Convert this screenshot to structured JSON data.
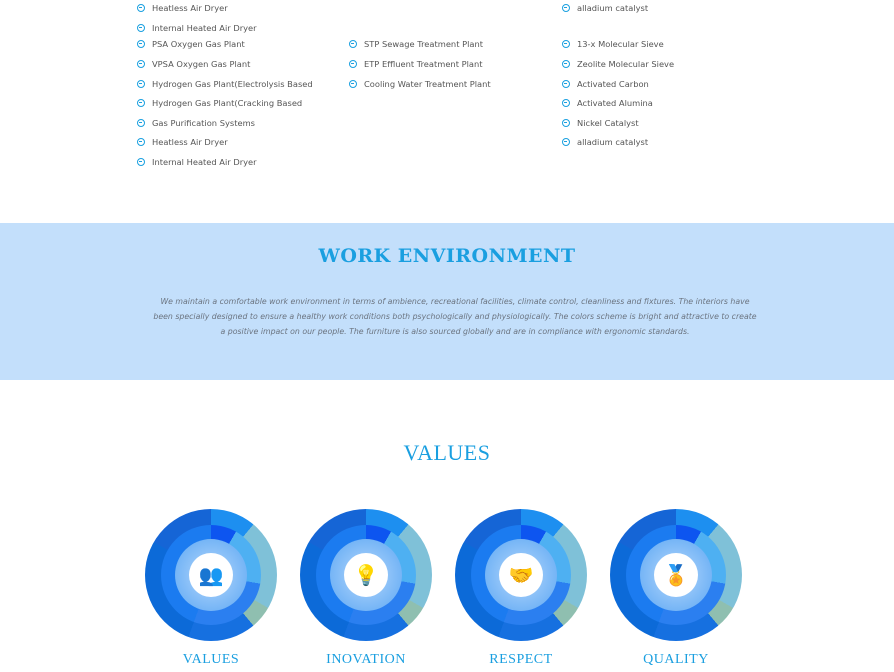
{
  "lists": {
    "col1_top": [
      "Heatless Air Dryer",
      "Internal Heated Air Dryer"
    ],
    "col1": [
      "PSA Oxygen Gas Plant",
      "VPSA Oxygen Gas Plant",
      "Hydrogen Gas Plant(Electrolysis Based",
      "Hydrogen Gas Plant(Cracking Based",
      "Gas Purification Systems",
      "Heatless Air Dryer",
      "Internal Heated Air Dryer"
    ],
    "col2": [
      "STP Sewage Treatment Plant",
      "ETP Effluent Treatment Plant",
      "Cooling Water Treatment Plant"
    ],
    "col3_top": [
      "alladium catalyst"
    ],
    "col3": [
      "13-x Molecular Sieve",
      "Zeolite Molecular Sieve",
      "Activated Carbon",
      "Activated Alumina",
      "Nickel Catalyst",
      "alladium catalyst"
    ],
    "icon": "circle-arrow-right-icon"
  },
  "work_environment": {
    "title": "WORK ENVIRONMENT",
    "text": "We maintain a comfortable work environment in terms of ambience, recreational facilities, climate control, cleanliness and fixtures. The interiors have been specially designed to ensure a healthy work conditions both psychologically and physiologically. The colors scheme is bright and attractive to create a positive impact on our people. The furniture is also sourced globally and are in compliance with ergonomic standards."
  },
  "values": {
    "title": "VALUES",
    "items": [
      {
        "label": "VALUES",
        "icon": "people-icon",
        "glyph": "👥"
      },
      {
        "label": "INOVATION",
        "icon": "lightbulb-icon",
        "glyph": "💡"
      },
      {
        "label": "RESPECT",
        "icon": "handshake-icon",
        "glyph": "🤝"
      },
      {
        "label": "QUALITY",
        "icon": "award-ribbon-icon",
        "glyph": "🏅"
      }
    ]
  },
  "colors": {
    "accent": "#1a9fe0",
    "band": "#c3dffb"
  }
}
